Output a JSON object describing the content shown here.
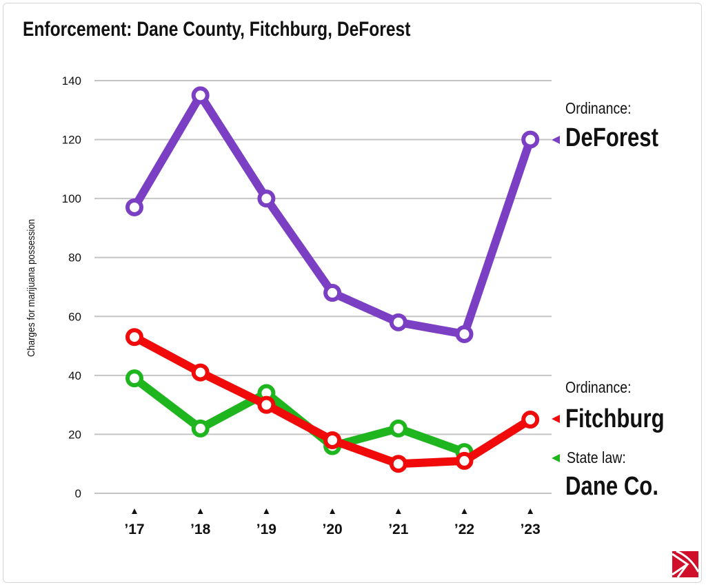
{
  "chart_data": {
    "type": "line",
    "title": "Enforcement: Dane County, Fitchburg, DeForest",
    "ylabel": "Charges for marijuana possession",
    "xlabel": "",
    "categories": [
      "’17",
      "’18",
      "’19",
      "’20",
      "’21",
      "’22",
      "’23"
    ],
    "ylim": [
      0,
      140
    ],
    "yticks": [
      0,
      20,
      40,
      60,
      80,
      100,
      120,
      140
    ],
    "grid": true,
    "series": [
      {
        "name": "DeForest",
        "label_top": "Ordinance:",
        "color": "#7b3fc4",
        "values": [
          97,
          135,
          100,
          68,
          58,
          54,
          120
        ]
      },
      {
        "name": "Dane Co.",
        "label_top": "State law:",
        "color": "#1fb51f",
        "values": [
          39,
          22,
          34,
          16,
          22,
          14,
          null
        ]
      },
      {
        "name": "Fitchburg",
        "label_top": "Ordinance:",
        "color": "#f00a0a",
        "values": [
          53,
          41,
          30,
          18,
          10,
          11,
          25
        ]
      }
    ]
  },
  "logo": {
    "color": "#d0102a"
  }
}
